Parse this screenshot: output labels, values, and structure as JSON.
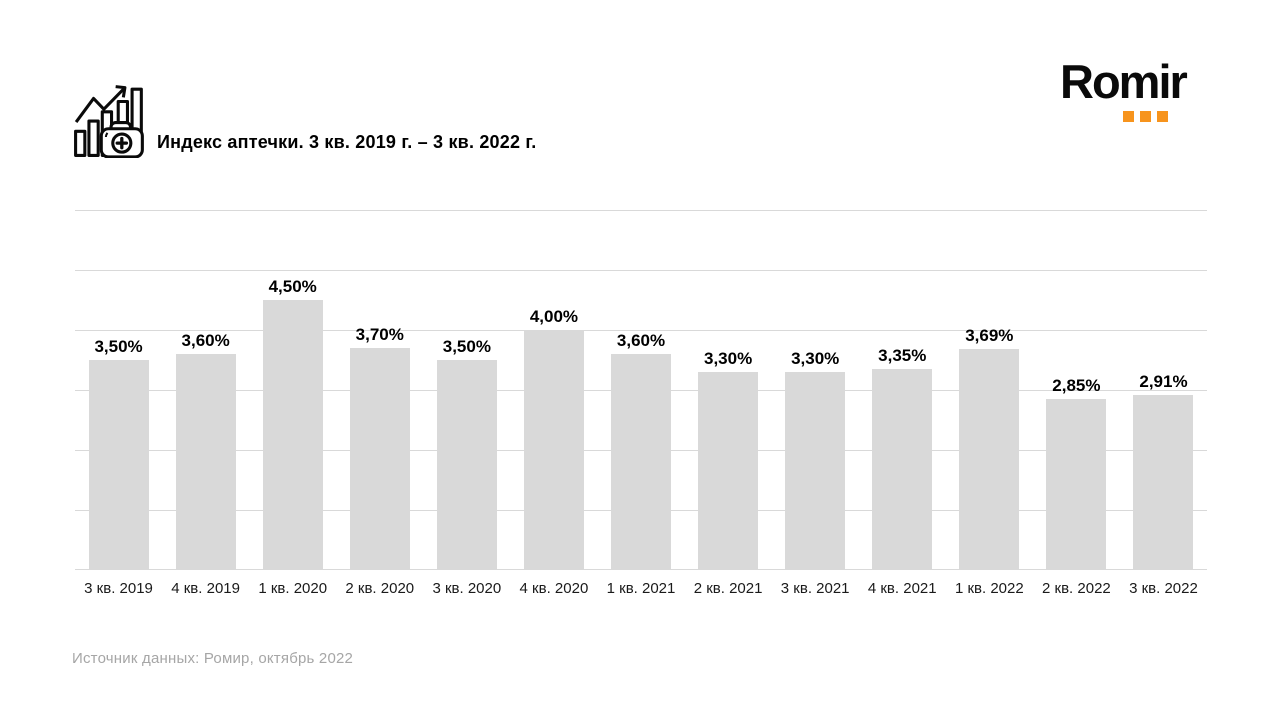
{
  "header": {
    "title": "Индекс аптечки. 3 кв. 2019 г. – 3 кв. 2022 г.",
    "icon": "bar-chart-first-aid-kit-icon"
  },
  "logo": {
    "text": "Romir",
    "text_color": "#0a0a0a",
    "accent_color": "#f7941d",
    "dots": 3
  },
  "chart_data": {
    "type": "bar",
    "title": "Индекс аптечки. 3 кв. 2019 г. – 3 кв. 2022 г.",
    "categories": [
      "3 кв. 2019",
      "4 кв. 2019",
      "1 кв. 2020",
      "2 кв. 2020",
      "3 кв. 2020",
      "4 кв. 2020",
      "1 кв. 2021",
      "2 кв. 2021",
      "3 кв. 2021",
      "4 кв. 2021",
      "1 кв. 2022",
      "2 кв. 2022",
      "3 кв. 2022"
    ],
    "values": [
      3.5,
      3.6,
      4.5,
      3.7,
      3.5,
      4.0,
      3.6,
      3.3,
      3.3,
      3.35,
      3.69,
      2.85,
      2.91
    ],
    "display_labels": [
      "3,50%",
      "3,60%",
      "4,50%",
      "3,70%",
      "3,50%",
      "4,00%",
      "3,60%",
      "3,30%",
      "3,30%",
      "3,35%",
      "3,69%",
      "2,85%",
      "2,91%"
    ],
    "xlabel": "",
    "ylabel": "",
    "ylim": [
      0,
      6
    ],
    "gridline_step": 1,
    "grid": true,
    "y_tick_labels_visible": false,
    "legend": "none",
    "bar_color": "#d9d9d9",
    "gridline_color": "#d9d9d9",
    "value_label_color": "#000000",
    "value_label_position": "above-bar"
  },
  "footer": {
    "source": "Источник данных: Ромир, октябрь 2022"
  }
}
